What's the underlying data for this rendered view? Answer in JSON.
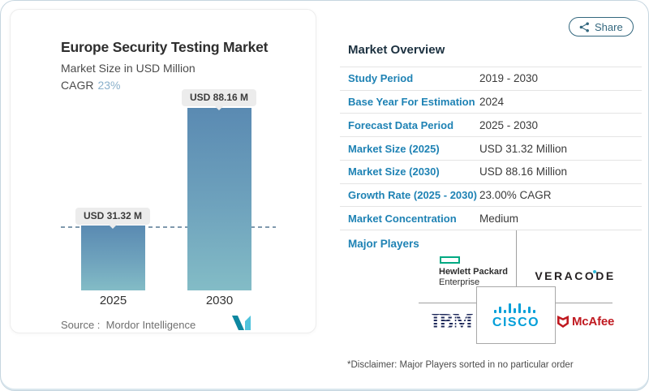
{
  "share": {
    "label": "Share"
  },
  "chart": {
    "title": "Europe Security Testing Market",
    "subtitle": "Market Size in USD Million",
    "cagr_label": "CAGR",
    "cagr_value": "23%",
    "source_prefix": "Source :",
    "source_name": "Mordor Intelligence"
  },
  "chart_data": {
    "type": "bar",
    "title": "Europe Security Testing Market",
    "xlabel": "",
    "ylabel": "Market Size in USD Million",
    "unit": "USD Million",
    "categories": [
      "2025",
      "2030"
    ],
    "values": [
      31.32,
      88.16
    ],
    "bar_labels": [
      "USD 31.32 M",
      "USD 88.16 M"
    ],
    "ylim": [
      0,
      95
    ],
    "grid": false,
    "legend": "none",
    "annotations": [
      "dashed horizontal reference line at 2025 value (31.32)"
    ]
  },
  "overview": {
    "title": "Market Overview",
    "rows": [
      {
        "label": "Study Period",
        "value": "2019 - 2030"
      },
      {
        "label": "Base Year For Estimation",
        "value": "2024"
      },
      {
        "label": "Forecast Data Period",
        "value": "2025 - 2030"
      },
      {
        "label": "Market Size (2025)",
        "value": "USD 31.32 Million"
      },
      {
        "label": "Market Size (2030)",
        "value": "USD 88.16 Million"
      },
      {
        "label": "Growth Rate (2025 - 2030)",
        "value": "23.00% CAGR"
      },
      {
        "label": "Market Concentration",
        "value": "Medium"
      }
    ],
    "major_players_label": "Major Players",
    "players": [
      "Hewlett Packard Enterprise",
      "Veracode",
      "IBM",
      "Cisco",
      "McAfee"
    ],
    "disclaimer": "*Disclaimer: Major Players sorted in no particular order"
  },
  "logos": {
    "hpe_line1": "Hewlett Packard",
    "hpe_line2": "Enterprise",
    "veracode_part1": "VERAC",
    "veracode_o": "O",
    "veracode_part2": "DE",
    "ibm": "IBM",
    "cisco": "CISCO",
    "mcafee": "McAfee"
  },
  "colors": {
    "accent_blue": "#1e82b4",
    "cagr_value_blue": "#8ab0cb",
    "bar_gradient_top": "#5a8ab2",
    "bar_gradient_bottom": "#83bcc6",
    "badge_bg": "#ececec",
    "share_teal": "#33677e",
    "hpe_green": "#01a982",
    "cisco_blue": "#049fd9",
    "mcafee_red": "#c01a21",
    "ibm_navy": "#1f2a5b",
    "veracode_black": "#231f20"
  }
}
